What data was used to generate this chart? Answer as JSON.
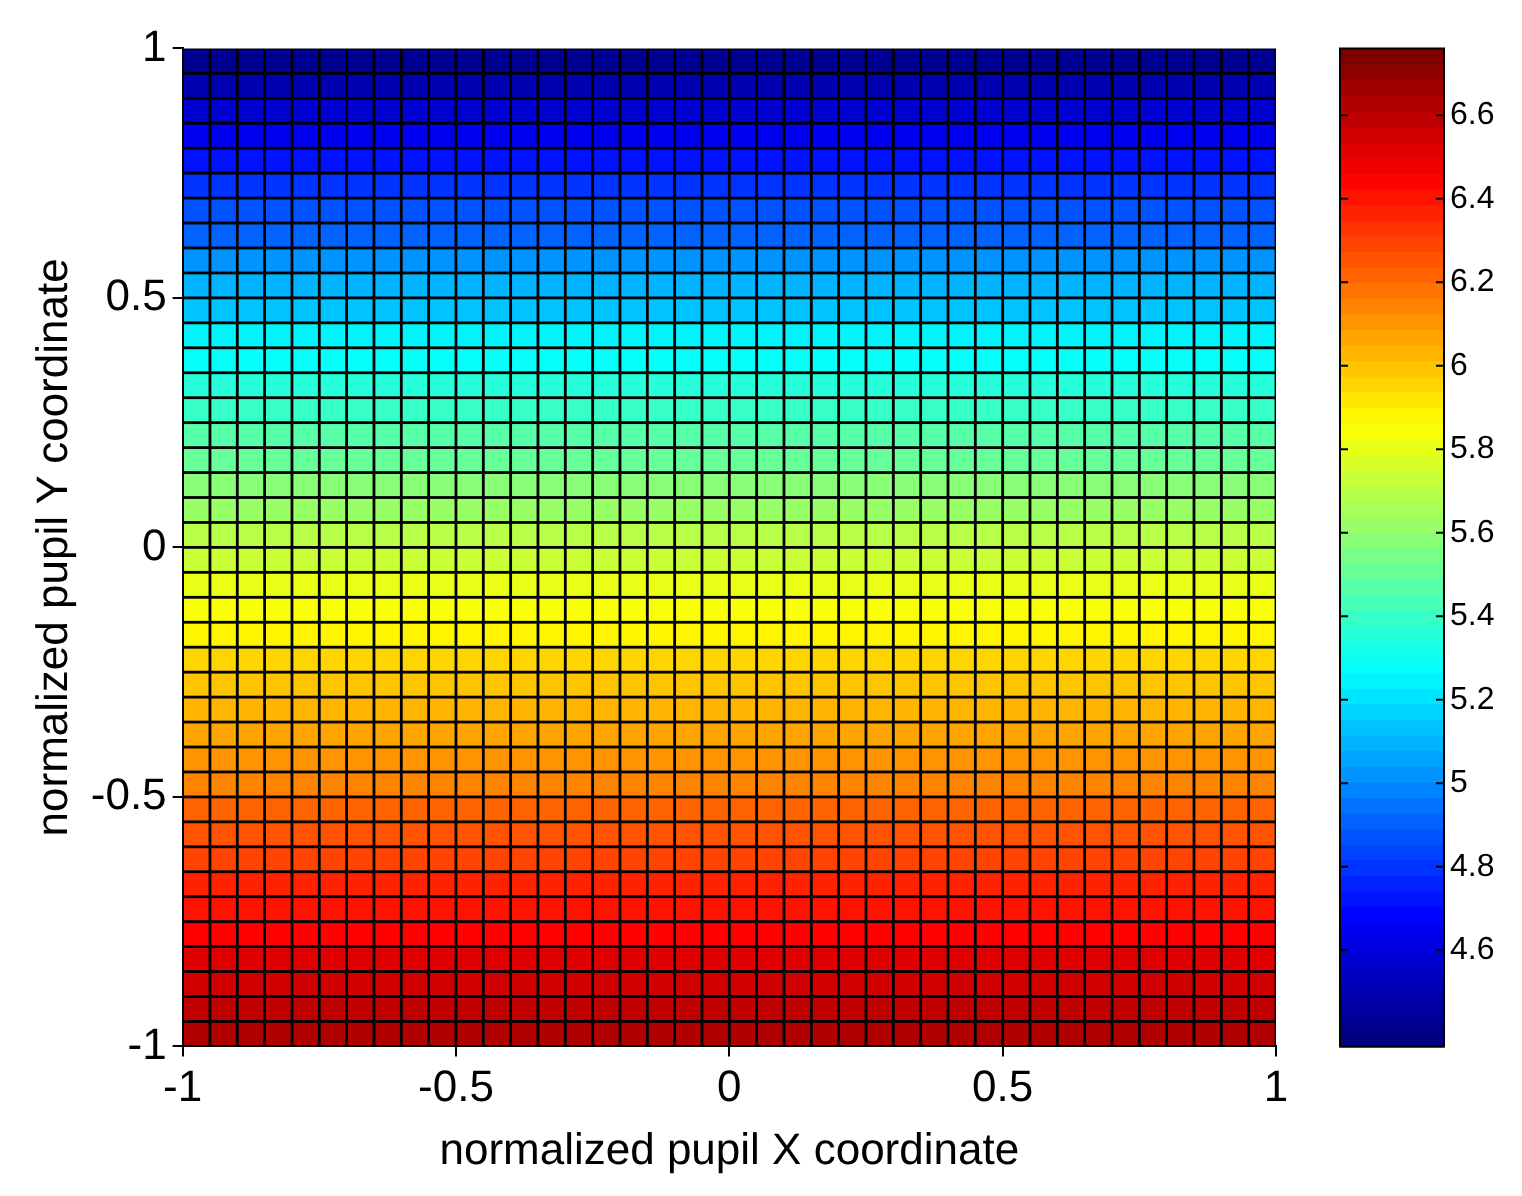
{
  "chart_data": {
    "type": "heatmap",
    "xlabel": "normalized pupil X coordinate",
    "ylabel": "normalized pupil Y coordinate",
    "x": [
      -0.975,
      -0.925,
      -0.875,
      -0.825,
      -0.775,
      -0.725,
      -0.675,
      -0.625,
      -0.575,
      -0.525,
      -0.475,
      -0.425,
      -0.375,
      -0.325,
      -0.275,
      -0.225,
      -0.175,
      -0.125,
      -0.075,
      -0.025,
      0.025,
      0.075,
      0.125,
      0.175,
      0.225,
      0.275,
      0.325,
      0.375,
      0.425,
      0.475,
      0.525,
      0.575,
      0.625,
      0.675,
      0.725,
      0.775,
      0.825,
      0.875,
      0.925,
      0.975
    ],
    "y": [
      0.975,
      0.925,
      0.875,
      0.825,
      0.775,
      0.725,
      0.675,
      0.625,
      0.575,
      0.525,
      0.475,
      0.425,
      0.375,
      0.325,
      0.275,
      0.225,
      0.175,
      0.125,
      0.075,
      0.025,
      -0.025,
      -0.075,
      -0.125,
      -0.175,
      -0.225,
      -0.275,
      -0.325,
      -0.375,
      -0.425,
      -0.475,
      -0.525,
      -0.575,
      -0.625,
      -0.675,
      -0.725,
      -0.775,
      -0.825,
      -0.875,
      -0.925,
      -0.975
    ],
    "xlim": [
      -1,
      1
    ],
    "xticks": [
      -1,
      -0.5,
      0,
      0.5,
      1
    ],
    "ylim": [
      -1,
      1
    ],
    "yticks": [
      -1,
      -0.5,
      0,
      0.5,
      1
    ],
    "clim": [
      4.37,
      6.76
    ],
    "cticks": [
      4.6,
      4.8,
      5,
      5.2,
      5.4,
      5.6,
      5.8,
      6,
      6.2,
      6.4,
      6.6
    ],
    "cells": [
      [
        4.42,
        4.42,
        4.42,
        4.42,
        4.42,
        4.42,
        4.42,
        4.42,
        4.42,
        4.42,
        4.42,
        4.42,
        4.42,
        4.42,
        4.42,
        4.42,
        4.42,
        4.42,
        4.42,
        4.42,
        4.42,
        4.42,
        4.42,
        4.42,
        4.42,
        4.42,
        4.42,
        4.42,
        4.42,
        4.42,
        4.42,
        4.42,
        4.42,
        4.42,
        4.42,
        4.42,
        4.42,
        4.42,
        4.42,
        4.42
      ],
      [
        4.49,
        4.49,
        4.49,
        4.49,
        4.49,
        4.49,
        4.49,
        4.49,
        4.49,
        4.49,
        4.49,
        4.49,
        4.49,
        4.49,
        4.49,
        4.49,
        4.49,
        4.49,
        4.49,
        4.49,
        4.49,
        4.49,
        4.49,
        4.49,
        4.49,
        4.49,
        4.49,
        4.49,
        4.49,
        4.49,
        4.49,
        4.49,
        4.49,
        4.49,
        4.49,
        4.49,
        4.49,
        4.49,
        4.49,
        4.49
      ],
      [
        4.57,
        4.57,
        4.57,
        4.57,
        4.57,
        4.57,
        4.57,
        4.57,
        4.57,
        4.57,
        4.57,
        4.57,
        4.57,
        4.57,
        4.57,
        4.57,
        4.57,
        4.57,
        4.57,
        4.57,
        4.57,
        4.57,
        4.57,
        4.57,
        4.57,
        4.57,
        4.57,
        4.57,
        4.57,
        4.57,
        4.57,
        4.57,
        4.57,
        4.57,
        4.57,
        4.57,
        4.57,
        4.57,
        4.57,
        4.57
      ],
      [
        4.64,
        4.64,
        4.64,
        4.64,
        4.64,
        4.64,
        4.64,
        4.64,
        4.64,
        4.64,
        4.64,
        4.64,
        4.64,
        4.64,
        4.64,
        4.64,
        4.64,
        4.64,
        4.64,
        4.64,
        4.64,
        4.64,
        4.64,
        4.64,
        4.64,
        4.64,
        4.64,
        4.64,
        4.64,
        4.64,
        4.64,
        4.64,
        4.64,
        4.64,
        4.64,
        4.64,
        4.64,
        4.64,
        4.64,
        4.64
      ],
      [
        4.71,
        4.71,
        4.71,
        4.71,
        4.71,
        4.71,
        4.71,
        4.71,
        4.71,
        4.71,
        4.71,
        4.71,
        4.71,
        4.71,
        4.71,
        4.71,
        4.71,
        4.71,
        4.71,
        4.71,
        4.71,
        4.71,
        4.71,
        4.71,
        4.71,
        4.71,
        4.71,
        4.71,
        4.71,
        4.71,
        4.71,
        4.71,
        4.71,
        4.71,
        4.71,
        4.71,
        4.71,
        4.71,
        4.71,
        4.71
      ],
      [
        4.79,
        4.79,
        4.79,
        4.79,
        4.79,
        4.79,
        4.79,
        4.79,
        4.79,
        4.79,
        4.79,
        4.79,
        4.79,
        4.79,
        4.79,
        4.79,
        4.79,
        4.79,
        4.79,
        4.79,
        4.79,
        4.79,
        4.79,
        4.79,
        4.79,
        4.79,
        4.79,
        4.79,
        4.79,
        4.79,
        4.79,
        4.79,
        4.79,
        4.79,
        4.79,
        4.79,
        4.79,
        4.79,
        4.79,
        4.79
      ],
      [
        4.86,
        4.86,
        4.86,
        4.86,
        4.86,
        4.86,
        4.86,
        4.86,
        4.86,
        4.86,
        4.86,
        4.86,
        4.86,
        4.86,
        4.86,
        4.86,
        4.86,
        4.86,
        4.86,
        4.86,
        4.86,
        4.86,
        4.86,
        4.86,
        4.86,
        4.86,
        4.86,
        4.86,
        4.86,
        4.86,
        4.86,
        4.86,
        4.86,
        4.86,
        4.86,
        4.86,
        4.86,
        4.86,
        4.86,
        4.86
      ],
      [
        4.93,
        4.93,
        4.93,
        4.93,
        4.93,
        4.93,
        4.93,
        4.93,
        4.93,
        4.93,
        4.93,
        4.93,
        4.93,
        4.93,
        4.93,
        4.93,
        4.93,
        4.93,
        4.93,
        4.93,
        4.93,
        4.93,
        4.93,
        4.93,
        4.93,
        4.93,
        4.93,
        4.93,
        4.93,
        4.93,
        4.93,
        4.93,
        4.93,
        4.93,
        4.93,
        4.93,
        4.93,
        4.93,
        4.93,
        4.93
      ],
      [
        5.01,
        5.01,
        5.01,
        5.01,
        5.01,
        5.01,
        5.01,
        5.01,
        5.01,
        5.01,
        5.01,
        5.01,
        5.01,
        5.01,
        5.01,
        5.01,
        5.01,
        5.01,
        5.01,
        5.01,
        5.01,
        5.01,
        5.01,
        5.01,
        5.01,
        5.01,
        5.01,
        5.01,
        5.01,
        5.01,
        5.01,
        5.01,
        5.01,
        5.01,
        5.01,
        5.01,
        5.01,
        5.01,
        5.01,
        5.01
      ],
      [
        5.08,
        5.08,
        5.08,
        5.08,
        5.08,
        5.08,
        5.08,
        5.08,
        5.08,
        5.08,
        5.08,
        5.08,
        5.08,
        5.08,
        5.08,
        5.08,
        5.08,
        5.08,
        5.08,
        5.08,
        5.08,
        5.08,
        5.08,
        5.08,
        5.08,
        5.08,
        5.08,
        5.08,
        5.08,
        5.08,
        5.08,
        5.08,
        5.08,
        5.08,
        5.08,
        5.08,
        5.08,
        5.08,
        5.08,
        5.08
      ],
      [
        5.15,
        5.15,
        5.15,
        5.15,
        5.15,
        5.15,
        5.15,
        5.15,
        5.15,
        5.15,
        5.15,
        5.15,
        5.15,
        5.15,
        5.15,
        5.15,
        5.15,
        5.15,
        5.15,
        5.15,
        5.15,
        5.15,
        5.15,
        5.15,
        5.15,
        5.15,
        5.15,
        5.15,
        5.15,
        5.15,
        5.15,
        5.15,
        5.15,
        5.15,
        5.15,
        5.15,
        5.15,
        5.15,
        5.15,
        5.15
      ],
      [
        5.23,
        5.23,
        5.23,
        5.23,
        5.23,
        5.23,
        5.23,
        5.23,
        5.23,
        5.23,
        5.23,
        5.23,
        5.23,
        5.23,
        5.23,
        5.23,
        5.23,
        5.23,
        5.23,
        5.23,
        5.23,
        5.23,
        5.23,
        5.23,
        5.23,
        5.23,
        5.23,
        5.23,
        5.23,
        5.23,
        5.23,
        5.23,
        5.23,
        5.23,
        5.23,
        5.23,
        5.23,
        5.23,
        5.23,
        5.23
      ],
      [
        5.3,
        5.3,
        5.3,
        5.3,
        5.3,
        5.3,
        5.3,
        5.3,
        5.3,
        5.3,
        5.3,
        5.3,
        5.3,
        5.3,
        5.3,
        5.3,
        5.3,
        5.3,
        5.3,
        5.3,
        5.3,
        5.3,
        5.3,
        5.3,
        5.3,
        5.3,
        5.3,
        5.3,
        5.3,
        5.3,
        5.3,
        5.3,
        5.3,
        5.3,
        5.3,
        5.3,
        5.3,
        5.3,
        5.3,
        5.3
      ],
      [
        5.36,
        5.36,
        5.36,
        5.36,
        5.36,
        5.36,
        5.36,
        5.36,
        5.36,
        5.36,
        5.36,
        5.36,
        5.36,
        5.36,
        5.36,
        5.36,
        5.36,
        5.36,
        5.36,
        5.36,
        5.36,
        5.36,
        5.36,
        5.36,
        5.36,
        5.36,
        5.36,
        5.36,
        5.36,
        5.36,
        5.36,
        5.36,
        5.36,
        5.36,
        5.36,
        5.36,
        5.36,
        5.36,
        5.36,
        5.36
      ],
      [
        5.41,
        5.41,
        5.41,
        5.41,
        5.41,
        5.41,
        5.41,
        5.41,
        5.41,
        5.41,
        5.41,
        5.41,
        5.41,
        5.41,
        5.41,
        5.41,
        5.41,
        5.41,
        5.41,
        5.41,
        5.41,
        5.41,
        5.41,
        5.41,
        5.41,
        5.41,
        5.41,
        5.41,
        5.41,
        5.41,
        5.41,
        5.41,
        5.41,
        5.41,
        5.41,
        5.41,
        5.41,
        5.41,
        5.41,
        5.41
      ],
      [
        5.47,
        5.47,
        5.47,
        5.47,
        5.47,
        5.47,
        5.47,
        5.47,
        5.47,
        5.47,
        5.47,
        5.47,
        5.47,
        5.47,
        5.47,
        5.47,
        5.47,
        5.47,
        5.47,
        5.47,
        5.47,
        5.47,
        5.47,
        5.47,
        5.47,
        5.47,
        5.47,
        5.47,
        5.47,
        5.47,
        5.47,
        5.47,
        5.47,
        5.47,
        5.47,
        5.47,
        5.47,
        5.47,
        5.47,
        5.47
      ],
      [
        5.52,
        5.52,
        5.52,
        5.52,
        5.52,
        5.52,
        5.52,
        5.52,
        5.52,
        5.52,
        5.52,
        5.52,
        5.52,
        5.52,
        5.52,
        5.52,
        5.52,
        5.52,
        5.52,
        5.52,
        5.52,
        5.52,
        5.52,
        5.52,
        5.52,
        5.52,
        5.52,
        5.52,
        5.52,
        5.52,
        5.52,
        5.52,
        5.52,
        5.52,
        5.52,
        5.52,
        5.52,
        5.52,
        5.52,
        5.52
      ],
      [
        5.58,
        5.58,
        5.58,
        5.58,
        5.58,
        5.58,
        5.58,
        5.58,
        5.58,
        5.58,
        5.58,
        5.58,
        5.58,
        5.58,
        5.58,
        5.58,
        5.58,
        5.58,
        5.58,
        5.58,
        5.58,
        5.58,
        5.58,
        5.58,
        5.58,
        5.58,
        5.58,
        5.58,
        5.58,
        5.58,
        5.58,
        5.58,
        5.58,
        5.58,
        5.58,
        5.58,
        5.58,
        5.58,
        5.58,
        5.58
      ],
      [
        5.63,
        5.63,
        5.63,
        5.63,
        5.63,
        5.63,
        5.63,
        5.63,
        5.63,
        5.63,
        5.63,
        5.63,
        5.63,
        5.63,
        5.63,
        5.63,
        5.63,
        5.63,
        5.63,
        5.63,
        5.63,
        5.63,
        5.63,
        5.63,
        5.63,
        5.63,
        5.63,
        5.63,
        5.63,
        5.63,
        5.63,
        5.63,
        5.63,
        5.63,
        5.63,
        5.63,
        5.63,
        5.63,
        5.63,
        5.63
      ],
      [
        5.69,
        5.69,
        5.69,
        5.69,
        5.69,
        5.69,
        5.69,
        5.69,
        5.69,
        5.69,
        5.69,
        5.69,
        5.69,
        5.69,
        5.69,
        5.69,
        5.69,
        5.69,
        5.69,
        5.69,
        5.69,
        5.69,
        5.69,
        5.69,
        5.69,
        5.69,
        5.69,
        5.69,
        5.69,
        5.69,
        5.69,
        5.69,
        5.69,
        5.69,
        5.69,
        5.69,
        5.69,
        5.69,
        5.69,
        5.69
      ],
      [
        5.74,
        5.74,
        5.74,
        5.74,
        5.74,
        5.74,
        5.74,
        5.74,
        5.74,
        5.74,
        5.74,
        5.74,
        5.74,
        5.74,
        5.74,
        5.74,
        5.74,
        5.74,
        5.74,
        5.74,
        5.74,
        5.74,
        5.74,
        5.74,
        5.74,
        5.74,
        5.74,
        5.74,
        5.74,
        5.74,
        5.74,
        5.74,
        5.74,
        5.74,
        5.74,
        5.74,
        5.74,
        5.74,
        5.74,
        5.74
      ],
      [
        5.8,
        5.8,
        5.8,
        5.8,
        5.8,
        5.8,
        5.8,
        5.8,
        5.8,
        5.8,
        5.8,
        5.8,
        5.8,
        5.8,
        5.8,
        5.8,
        5.8,
        5.8,
        5.8,
        5.8,
        5.8,
        5.8,
        5.8,
        5.8,
        5.8,
        5.8,
        5.8,
        5.8,
        5.8,
        5.8,
        5.8,
        5.8,
        5.8,
        5.8,
        5.8,
        5.8,
        5.8,
        5.8,
        5.8,
        5.8
      ],
      [
        5.85,
        5.85,
        5.85,
        5.85,
        5.85,
        5.85,
        5.85,
        5.85,
        5.85,
        5.85,
        5.85,
        5.85,
        5.85,
        5.85,
        5.85,
        5.85,
        5.85,
        5.85,
        5.85,
        5.85,
        5.85,
        5.85,
        5.85,
        5.85,
        5.85,
        5.85,
        5.85,
        5.85,
        5.85,
        5.85,
        5.85,
        5.85,
        5.85,
        5.85,
        5.85,
        5.85,
        5.85,
        5.85,
        5.85,
        5.85
      ],
      [
        5.89,
        5.89,
        5.89,
        5.89,
        5.89,
        5.89,
        5.89,
        5.89,
        5.89,
        5.89,
        5.89,
        5.89,
        5.89,
        5.89,
        5.89,
        5.89,
        5.89,
        5.89,
        5.89,
        5.89,
        5.89,
        5.89,
        5.89,
        5.89,
        5.89,
        5.89,
        5.89,
        5.89,
        5.89,
        5.89,
        5.89,
        5.89,
        5.89,
        5.89,
        5.89,
        5.89,
        5.89,
        5.89,
        5.89,
        5.89
      ],
      [
        5.94,
        5.94,
        5.94,
        5.94,
        5.94,
        5.94,
        5.94,
        5.94,
        5.94,
        5.94,
        5.94,
        5.94,
        5.94,
        5.94,
        5.94,
        5.94,
        5.94,
        5.94,
        5.94,
        5.94,
        5.94,
        5.94,
        5.94,
        5.94,
        5.94,
        5.94,
        5.94,
        5.94,
        5.94,
        5.94,
        5.94,
        5.94,
        5.94,
        5.94,
        5.94,
        5.94,
        5.94,
        5.94,
        5.94,
        5.94
      ],
      [
        5.98,
        5.98,
        5.98,
        5.98,
        5.98,
        5.98,
        5.98,
        5.98,
        5.98,
        5.98,
        5.98,
        5.98,
        5.98,
        5.98,
        5.98,
        5.98,
        5.98,
        5.98,
        5.98,
        5.98,
        5.98,
        5.98,
        5.98,
        5.98,
        5.98,
        5.98,
        5.98,
        5.98,
        5.98,
        5.98,
        5.98,
        5.98,
        5.98,
        5.98,
        5.98,
        5.98,
        5.98,
        5.98,
        5.98,
        5.98
      ],
      [
        6.03,
        6.03,
        6.03,
        6.03,
        6.03,
        6.03,
        6.03,
        6.03,
        6.03,
        6.03,
        6.03,
        6.03,
        6.03,
        6.03,
        6.03,
        6.03,
        6.03,
        6.03,
        6.03,
        6.03,
        6.03,
        6.03,
        6.03,
        6.03,
        6.03,
        6.03,
        6.03,
        6.03,
        6.03,
        6.03,
        6.03,
        6.03,
        6.03,
        6.03,
        6.03,
        6.03,
        6.03,
        6.03,
        6.03,
        6.03
      ],
      [
        6.07,
        6.07,
        6.07,
        6.07,
        6.07,
        6.07,
        6.07,
        6.07,
        6.07,
        6.07,
        6.07,
        6.07,
        6.07,
        6.07,
        6.07,
        6.07,
        6.07,
        6.07,
        6.07,
        6.07,
        6.07,
        6.07,
        6.07,
        6.07,
        6.07,
        6.07,
        6.07,
        6.07,
        6.07,
        6.07,
        6.07,
        6.07,
        6.07,
        6.07,
        6.07,
        6.07,
        6.07,
        6.07,
        6.07,
        6.07
      ],
      [
        6.11,
        6.11,
        6.11,
        6.11,
        6.11,
        6.11,
        6.11,
        6.11,
        6.11,
        6.11,
        6.11,
        6.11,
        6.11,
        6.11,
        6.11,
        6.11,
        6.11,
        6.11,
        6.11,
        6.11,
        6.11,
        6.11,
        6.11,
        6.11,
        6.11,
        6.11,
        6.11,
        6.11,
        6.11,
        6.11,
        6.11,
        6.11,
        6.11,
        6.11,
        6.11,
        6.11,
        6.11,
        6.11,
        6.11,
        6.11
      ],
      [
        6.16,
        6.16,
        6.16,
        6.16,
        6.16,
        6.16,
        6.16,
        6.16,
        6.16,
        6.16,
        6.16,
        6.16,
        6.16,
        6.16,
        6.16,
        6.16,
        6.16,
        6.16,
        6.16,
        6.16,
        6.16,
        6.16,
        6.16,
        6.16,
        6.16,
        6.16,
        6.16,
        6.16,
        6.16,
        6.16,
        6.16,
        6.16,
        6.16,
        6.16,
        6.16,
        6.16,
        6.16,
        6.16,
        6.16,
        6.16
      ],
      [
        6.2,
        6.2,
        6.2,
        6.2,
        6.2,
        6.2,
        6.2,
        6.2,
        6.2,
        6.2,
        6.2,
        6.2,
        6.2,
        6.2,
        6.2,
        6.2,
        6.2,
        6.2,
        6.2,
        6.2,
        6.2,
        6.2,
        6.2,
        6.2,
        6.2,
        6.2,
        6.2,
        6.2,
        6.2,
        6.2,
        6.2,
        6.2,
        6.2,
        6.2,
        6.2,
        6.2,
        6.2,
        6.2,
        6.2,
        6.2
      ],
      [
        6.25,
        6.25,
        6.25,
        6.25,
        6.25,
        6.25,
        6.25,
        6.25,
        6.25,
        6.25,
        6.25,
        6.25,
        6.25,
        6.25,
        6.25,
        6.25,
        6.25,
        6.25,
        6.25,
        6.25,
        6.25,
        6.25,
        6.25,
        6.25,
        6.25,
        6.25,
        6.25,
        6.25,
        6.25,
        6.25,
        6.25,
        6.25,
        6.25,
        6.25,
        6.25,
        6.25,
        6.25,
        6.25,
        6.25,
        6.25
      ],
      [
        6.3,
        6.3,
        6.3,
        6.3,
        6.3,
        6.3,
        6.3,
        6.3,
        6.3,
        6.3,
        6.3,
        6.3,
        6.3,
        6.3,
        6.3,
        6.3,
        6.3,
        6.3,
        6.3,
        6.3,
        6.3,
        6.3,
        6.3,
        6.3,
        6.3,
        6.3,
        6.3,
        6.3,
        6.3,
        6.3,
        6.3,
        6.3,
        6.3,
        6.3,
        6.3,
        6.3,
        6.3,
        6.3,
        6.3,
        6.3
      ],
      [
        6.35,
        6.35,
        6.35,
        6.35,
        6.35,
        6.35,
        6.35,
        6.35,
        6.35,
        6.35,
        6.35,
        6.35,
        6.35,
        6.35,
        6.35,
        6.35,
        6.35,
        6.35,
        6.35,
        6.35,
        6.35,
        6.35,
        6.35,
        6.35,
        6.35,
        6.35,
        6.35,
        6.35,
        6.35,
        6.35,
        6.35,
        6.35,
        6.35,
        6.35,
        6.35,
        6.35,
        6.35,
        6.35,
        6.35,
        6.35
      ],
      [
        6.4,
        6.4,
        6.4,
        6.4,
        6.4,
        6.4,
        6.4,
        6.4,
        6.4,
        6.4,
        6.4,
        6.4,
        6.4,
        6.4,
        6.4,
        6.4,
        6.4,
        6.4,
        6.4,
        6.4,
        6.4,
        6.4,
        6.4,
        6.4,
        6.4,
        6.4,
        6.4,
        6.4,
        6.4,
        6.4,
        6.4,
        6.4,
        6.4,
        6.4,
        6.4,
        6.4,
        6.4,
        6.4,
        6.4,
        6.4
      ],
      [
        6.45,
        6.45,
        6.45,
        6.45,
        6.45,
        6.45,
        6.45,
        6.45,
        6.45,
        6.45,
        6.45,
        6.45,
        6.45,
        6.45,
        6.45,
        6.45,
        6.45,
        6.45,
        6.45,
        6.45,
        6.45,
        6.45,
        6.45,
        6.45,
        6.45,
        6.45,
        6.45,
        6.45,
        6.45,
        6.45,
        6.45,
        6.45,
        6.45,
        6.45,
        6.45,
        6.45,
        6.45,
        6.45,
        6.45,
        6.45
      ],
      [
        6.5,
        6.5,
        6.5,
        6.5,
        6.5,
        6.5,
        6.5,
        6.5,
        6.5,
        6.5,
        6.5,
        6.5,
        6.5,
        6.5,
        6.5,
        6.5,
        6.5,
        6.5,
        6.5,
        6.5,
        6.5,
        6.5,
        6.5,
        6.5,
        6.5,
        6.5,
        6.5,
        6.5,
        6.5,
        6.5,
        6.5,
        6.5,
        6.5,
        6.5,
        6.5,
        6.5,
        6.5,
        6.5,
        6.5,
        6.5
      ],
      [
        6.55,
        6.55,
        6.55,
        6.55,
        6.55,
        6.55,
        6.55,
        6.55,
        6.55,
        6.55,
        6.55,
        6.55,
        6.55,
        6.55,
        6.55,
        6.55,
        6.55,
        6.55,
        6.55,
        6.55,
        6.55,
        6.55,
        6.55,
        6.55,
        6.55,
        6.55,
        6.55,
        6.55,
        6.55,
        6.55,
        6.55,
        6.55,
        6.55,
        6.55,
        6.55,
        6.55,
        6.55,
        6.55,
        6.55,
        6.55
      ],
      [
        6.59,
        6.59,
        6.59,
        6.59,
        6.59,
        6.59,
        6.59,
        6.59,
        6.59,
        6.59,
        6.59,
        6.59,
        6.59,
        6.59,
        6.59,
        6.59,
        6.59,
        6.59,
        6.59,
        6.59,
        6.59,
        6.59,
        6.59,
        6.59,
        6.59,
        6.59,
        6.59,
        6.59,
        6.59,
        6.59,
        6.59,
        6.59,
        6.59,
        6.59,
        6.59,
        6.59,
        6.59,
        6.59,
        6.59,
        6.59
      ],
      [
        6.64,
        6.64,
        6.64,
        6.64,
        6.64,
        6.64,
        6.64,
        6.64,
        6.64,
        6.64,
        6.64,
        6.64,
        6.64,
        6.64,
        6.64,
        6.64,
        6.64,
        6.64,
        6.64,
        6.64,
        6.64,
        6.64,
        6.64,
        6.64,
        6.64,
        6.64,
        6.64,
        6.64,
        6.64,
        6.64,
        6.64,
        6.64,
        6.64,
        6.64,
        6.64,
        6.64,
        6.64,
        6.64,
        6.64,
        6.64
      ]
    ]
  }
}
